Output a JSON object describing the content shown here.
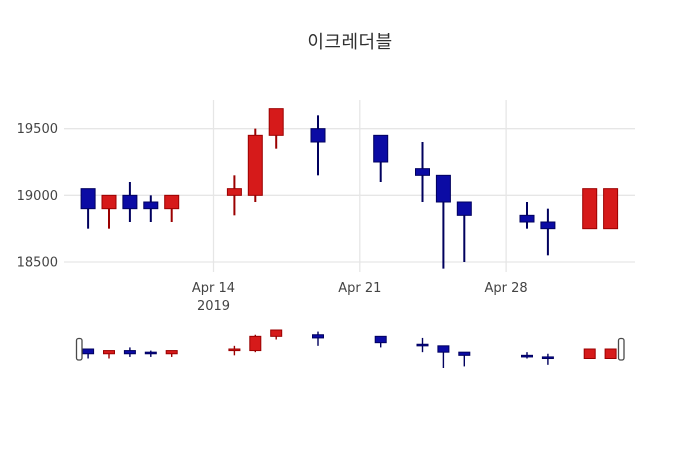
{
  "title": "이크레더블",
  "colors": {
    "increasing_fill": "#d61a1a",
    "increasing_border": "#9b0000",
    "decreasing_fill": "#0b0ba4",
    "decreasing_border": "#00005e",
    "grid": "#e6e6e6",
    "tick_label": "#444444",
    "title_color": "#2f2f2f",
    "background": "#ffffff",
    "handle_fill": "#ffffff",
    "handle_border": "#4a4a4a"
  },
  "chart_data": {
    "type": "candlestick",
    "title": "이크레더블",
    "legend": "none",
    "grid": "on",
    "ylim": [
      18425,
      19715
    ],
    "y_ticks": [
      {
        "label": "19500",
        "value": 19500
      },
      {
        "label": "19000",
        "value": 19000
      },
      {
        "label": "18500",
        "value": 18500
      }
    ],
    "x_ticks": [
      {
        "label": "Apr 14",
        "sublabel": "2019",
        "day": 0
      },
      {
        "label": "Apr 21",
        "sublabel": "",
        "day": 7
      },
      {
        "label": "Apr 28",
        "sublabel": "",
        "day": 14
      }
    ],
    "rangeslider": {
      "visible": true,
      "ylim": [
        18450,
        19650
      ]
    },
    "candles": [
      {
        "date": "Apr 8",
        "day": -6,
        "open": 19050,
        "high": 19050,
        "low": 18750,
        "close": 18900
      },
      {
        "date": "Apr 9",
        "day": -5,
        "open": 18900,
        "high": 19000,
        "low": 18750,
        "close": 19000
      },
      {
        "date": "Apr 10",
        "day": -4,
        "open": 19000,
        "high": 19100,
        "low": 18800,
        "close": 18900
      },
      {
        "date": "Apr 11",
        "day": -3,
        "open": 18950,
        "high": 19000,
        "low": 18800,
        "close": 18900
      },
      {
        "date": "Apr 12",
        "day": -2,
        "open": 18900,
        "high": 19000,
        "low": 18800,
        "close": 19000
      },
      {
        "date": "Apr 15",
        "day": 1,
        "open": 19000,
        "high": 19150,
        "low": 18850,
        "close": 19050
      },
      {
        "date": "Apr 16",
        "day": 2,
        "open": 19000,
        "high": 19500,
        "low": 18950,
        "close": 19450
      },
      {
        "date": "Apr 17",
        "day": 3,
        "open": 19450,
        "high": 19650,
        "low": 19350,
        "close": 19650
      },
      {
        "date": "Apr 19",
        "day": 5,
        "open": 19500,
        "high": 19600,
        "low": 19150,
        "close": 19400
      },
      {
        "date": "Apr 22",
        "day": 8,
        "open": 19450,
        "high": 19450,
        "low": 19100,
        "close": 19250
      },
      {
        "date": "Apr 24",
        "day": 10,
        "open": 19200,
        "high": 19400,
        "low": 18950,
        "close": 19150
      },
      {
        "date": "Apr 25",
        "day": 11,
        "open": 19150,
        "high": 19150,
        "low": 18450,
        "close": 18950
      },
      {
        "date": "Apr 26",
        "day": 12,
        "open": 18950,
        "high": 18950,
        "low": 18500,
        "close": 18850
      },
      {
        "date": "Apr 29",
        "day": 15,
        "open": 18850,
        "high": 18950,
        "low": 18750,
        "close": 18800
      },
      {
        "date": "Apr 30",
        "day": 16,
        "open": 18800,
        "high": 18900,
        "low": 18550,
        "close": 18750
      },
      {
        "date": "May 2",
        "day": 18,
        "open": 18750,
        "high": 19050,
        "low": 18750,
        "close": 19050
      },
      {
        "date": "May 3",
        "day": 19,
        "open": 18750,
        "high": 19050,
        "low": 18750,
        "close": 19050
      }
    ]
  }
}
